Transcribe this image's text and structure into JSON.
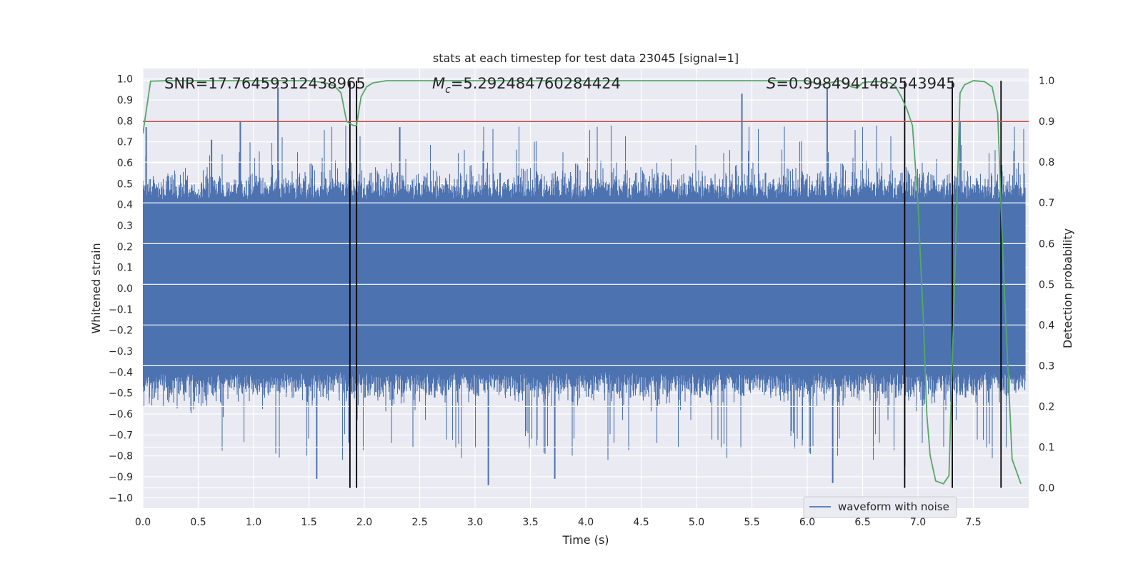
{
  "chart_data": {
    "type": "line",
    "title": "stats at each timestep for test data 23045 [signal=1]",
    "xlabel": "Time (s)",
    "ylabel": "Whitened strain",
    "y2label": "Detection probability",
    "xlim": [
      0.0,
      8.0
    ],
    "ylim": [
      -1.05,
      1.05
    ],
    "y2lim": [
      -0.05,
      1.03
    ],
    "x_ticks": [
      "0.0",
      "0.5",
      "1.0",
      "1.5",
      "2.0",
      "2.5",
      "3.0",
      "3.5",
      "4.0",
      "4.5",
      "5.0",
      "5.5",
      "6.0",
      "6.5",
      "7.0",
      "7.5"
    ],
    "y_ticks": [
      "1.0",
      "0.9",
      "0.8",
      "0.7",
      "0.6",
      "0.5",
      "0.4",
      "0.3",
      "0.2",
      "0.1",
      "0.0",
      "−0.1",
      "−0.2",
      "−0.3",
      "−0.4",
      "−0.5",
      "−0.6",
      "−0.7",
      "−0.8",
      "−0.9",
      "−1.0"
    ],
    "y2_ticks": [
      "1.0",
      "0.9",
      "0.8",
      "0.7",
      "0.6",
      "0.5",
      "0.4",
      "0.3",
      "0.2",
      "0.1",
      "0.0"
    ],
    "annotations": {
      "snr": "SNR=17.76459312438965",
      "mc_symbol": "M",
      "mc_sub": "c",
      "mc_value": "=5.292484760284424",
      "s_symbol": "S",
      "s_value": "=0.9984941482543945"
    },
    "threshold": 0.9,
    "vertical_lines_s": [
      1.87,
      1.93,
      6.88,
      7.31,
      7.75
    ],
    "series": [
      {
        "name": "waveform with noise",
        "color": "#4c72b0",
        "description": "whitened noisy strain, dense noise band roughly ±0.45 with spikes to ±0.95",
        "notable_peaks": [
          {
            "x": 0.03,
            "y": 0.77
          },
          {
            "x": 0.62,
            "y": 0.71
          },
          {
            "x": 0.88,
            "y": 0.8
          },
          {
            "x": 1.22,
            "y": 0.96
          },
          {
            "x": 1.57,
            "y": -0.91
          },
          {
            "x": 2.32,
            "y": 0.77
          },
          {
            "x": 3.12,
            "y": -0.94
          },
          {
            "x": 3.72,
            "y": -0.91
          },
          {
            "x": 5.41,
            "y": 0.93
          },
          {
            "x": 6.18,
            "y": 0.96
          },
          {
            "x": 6.23,
            "y": -0.93
          },
          {
            "x": 6.88,
            "y": -0.85
          },
          {
            "x": 7.38,
            "y": 0.8
          }
        ]
      },
      {
        "name": "detection probability",
        "color": "#55a868",
        "axis": "right",
        "x": [
          0.0,
          0.07,
          0.2,
          1.5,
          1.65,
          1.73,
          1.79,
          1.84,
          1.9,
          1.93,
          1.97,
          2.02,
          2.08,
          2.2,
          4.5,
          6.0,
          6.13,
          6.2,
          6.3,
          6.4,
          6.45,
          6.5,
          6.55,
          6.65,
          6.75,
          6.8,
          6.85,
          6.9,
          6.95,
          7.0,
          7.05,
          7.08,
          7.11,
          7.16,
          7.23,
          7.28,
          7.33,
          7.38,
          7.42,
          7.5,
          7.6,
          7.67,
          7.72,
          7.77,
          7.85,
          7.93
        ],
        "y": [
          0.87,
          0.999,
          1.0,
          1.0,
          0.995,
          0.987,
          0.97,
          0.9,
          0.89,
          0.89,
          0.96,
          0.985,
          0.995,
          1.0,
          1.0,
          1.0,
          0.99,
          0.995,
          1.0,
          0.985,
          0.982,
          0.995,
          0.997,
          0.998,
          0.995,
          0.985,
          0.96,
          0.93,
          0.89,
          0.7,
          0.4,
          0.18,
          0.08,
          0.017,
          0.01,
          0.03,
          0.5,
          0.97,
          0.99,
          1.0,
          0.998,
          0.985,
          0.92,
          0.55,
          0.07,
          0.01
        ]
      },
      {
        "name": "threshold",
        "color": "#c44e52",
        "axis": "right",
        "value": 0.9
      }
    ],
    "legend": {
      "location": "lower-right",
      "entries": [
        "waveform with noise"
      ]
    }
  },
  "colors": {
    "axes_bg": "#eaeaf2",
    "grid": "#ffffff",
    "strain": "#4c72b0",
    "probability": "#55a868",
    "threshold": "#c44e52",
    "marker_lines": "#000000"
  }
}
